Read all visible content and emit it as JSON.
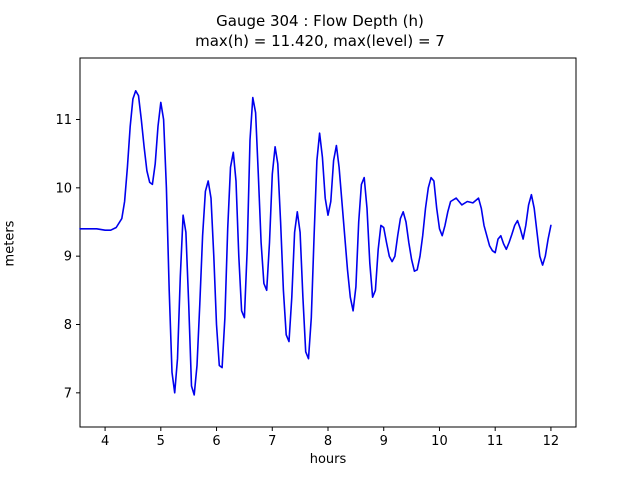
{
  "title": "Gauge 304 : Flow Depth (h)",
  "subtitle": "max(h) =  11.420,    max(level) = 7",
  "chart_data": {
    "type": "line",
    "title": "Gauge 304 : Flow Depth (h)",
    "subtitle": "max(h) =  11.420,    max(level) = 7",
    "xlabel": "hours",
    "ylabel": "meters",
    "xlim": [
      3.55,
      12.45
    ],
    "ylim": [
      6.5,
      11.9
    ],
    "xticks": [
      4,
      5,
      6,
      7,
      8,
      9,
      10,
      11,
      12
    ],
    "yticks": [
      7,
      8,
      9,
      10,
      11
    ],
    "grid": false,
    "legend": "none",
    "line_color": "#0000ee",
    "series": [
      {
        "name": "h",
        "x": [
          3.55,
          3.7,
          3.85,
          4.0,
          4.1,
          4.2,
          4.3,
          4.35,
          4.4,
          4.45,
          4.5,
          4.55,
          4.6,
          4.65,
          4.7,
          4.75,
          4.8,
          4.85,
          4.9,
          4.95,
          5.0,
          5.05,
          5.1,
          5.15,
          5.2,
          5.25,
          5.3,
          5.35,
          5.4,
          5.45,
          5.5,
          5.55,
          5.6,
          5.65,
          5.7,
          5.75,
          5.8,
          5.85,
          5.9,
          5.95,
          6.0,
          6.05,
          6.1,
          6.15,
          6.2,
          6.25,
          6.3,
          6.35,
          6.4,
          6.45,
          6.5,
          6.55,
          6.6,
          6.65,
          6.7,
          6.75,
          6.8,
          6.85,
          6.9,
          6.95,
          7.0,
          7.05,
          7.1,
          7.15,
          7.2,
          7.25,
          7.3,
          7.35,
          7.4,
          7.45,
          7.5,
          7.55,
          7.6,
          7.65,
          7.7,
          7.75,
          7.8,
          7.85,
          7.9,
          7.95,
          8.0,
          8.05,
          8.1,
          8.15,
          8.2,
          8.25,
          8.3,
          8.35,
          8.4,
          8.45,
          8.5,
          8.55,
          8.6,
          8.65,
          8.7,
          8.75,
          8.8,
          8.85,
          8.9,
          8.95,
          9.0,
          9.05,
          9.1,
          9.15,
          9.2,
          9.25,
          9.3,
          9.35,
          9.4,
          9.45,
          9.5,
          9.55,
          9.6,
          9.65,
          9.7,
          9.75,
          9.8,
          9.85,
          9.9,
          9.95,
          10.0,
          10.05,
          10.1,
          10.15,
          10.2,
          10.3,
          10.4,
          10.5,
          10.6,
          10.7,
          10.75,
          10.8,
          10.9,
          10.95,
          11.0,
          11.05,
          11.1,
          11.15,
          11.2,
          11.25,
          11.3,
          11.35,
          11.4,
          11.45,
          11.5,
          11.55,
          11.6,
          11.65,
          11.7,
          11.75,
          11.8,
          11.85,
          11.9,
          11.95,
          12.0
        ],
        "y": [
          9.4,
          9.4,
          9.4,
          9.38,
          9.38,
          9.42,
          9.55,
          9.8,
          10.3,
          10.9,
          11.3,
          11.42,
          11.35,
          11.0,
          10.6,
          10.25,
          10.08,
          10.05,
          10.35,
          10.9,
          11.25,
          11.0,
          10.0,
          8.5,
          7.3,
          7.0,
          7.5,
          8.7,
          9.6,
          9.35,
          8.3,
          7.1,
          6.97,
          7.4,
          8.3,
          9.3,
          9.95,
          10.1,
          9.85,
          9.0,
          8.0,
          7.4,
          7.37,
          8.1,
          9.4,
          10.3,
          10.52,
          10.1,
          9.0,
          8.2,
          8.1,
          9.1,
          10.7,
          11.32,
          11.1,
          10.2,
          9.2,
          8.6,
          8.5,
          9.2,
          10.2,
          10.6,
          10.35,
          9.5,
          8.5,
          7.85,
          7.75,
          8.4,
          9.35,
          9.65,
          9.35,
          8.4,
          7.6,
          7.5,
          8.1,
          9.3,
          10.4,
          10.8,
          10.45,
          9.85,
          9.6,
          9.8,
          10.4,
          10.62,
          10.3,
          9.8,
          9.3,
          8.8,
          8.4,
          8.2,
          8.55,
          9.5,
          10.05,
          10.15,
          9.7,
          8.9,
          8.4,
          8.5,
          9.1,
          9.45,
          9.42,
          9.2,
          9.0,
          8.92,
          9.0,
          9.3,
          9.55,
          9.65,
          9.5,
          9.2,
          8.95,
          8.78,
          8.8,
          9.0,
          9.3,
          9.7,
          10.0,
          10.15,
          10.1,
          9.7,
          9.4,
          9.3,
          9.45,
          9.65,
          9.8,
          9.85,
          9.75,
          9.8,
          9.78,
          9.85,
          9.7,
          9.45,
          9.15,
          9.08,
          9.05,
          9.25,
          9.3,
          9.18,
          9.1,
          9.2,
          9.32,
          9.45,
          9.52,
          9.4,
          9.25,
          9.45,
          9.75,
          9.9,
          9.7,
          9.35,
          9.0,
          8.87,
          9.0,
          9.25,
          9.45
        ]
      }
    ]
  }
}
